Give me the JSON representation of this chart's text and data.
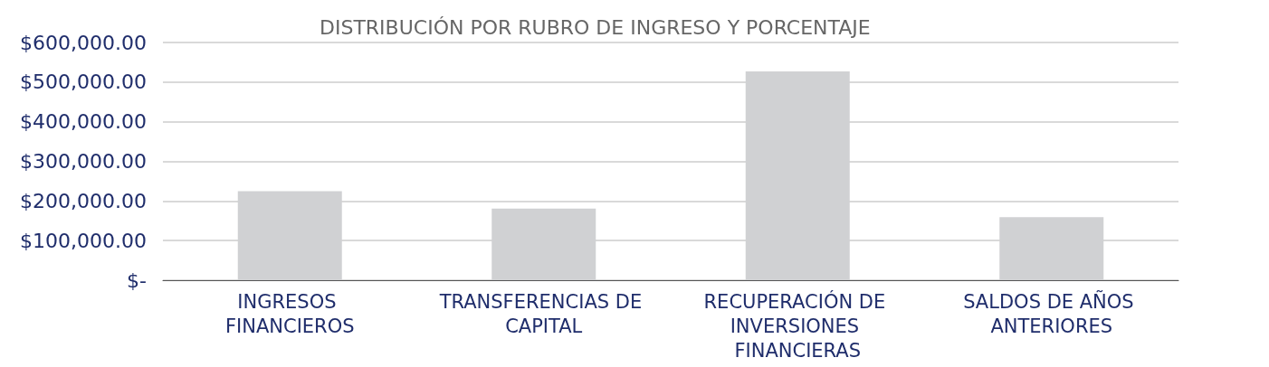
{
  "chart_data": {
    "type": "bar",
    "title": "DISTRIBUCIÓN POR RUBRO DE INGRESO Y PORCENTAJE",
    "categories": [
      "INGRESOS FINANCIEROS",
      "TRANSFERENCIAS DE CAPITAL",
      "RECUPERACIÓN DE INVERSIONES FINANCIERAS",
      "SALDOS DE AÑOS ANTERIORES"
    ],
    "values": [
      225000,
      181000,
      527000,
      159000
    ],
    "color": "#d0d1d3",
    "ylim": [
      0,
      600000
    ],
    "yticks": [
      {
        "value": 0,
        "label": "$-"
      },
      {
        "value": 100000,
        "label": "$100,000.00"
      },
      {
        "value": 200000,
        "label": "$200,000.00"
      },
      {
        "value": 300000,
        "label": "$300,000.00"
      },
      {
        "value": 400000,
        "label": "$400,000.00"
      },
      {
        "value": 500000,
        "label": "$500,000.00"
      },
      {
        "value": 600000,
        "label": "$600,000.00"
      }
    ],
    "grid": true
  }
}
